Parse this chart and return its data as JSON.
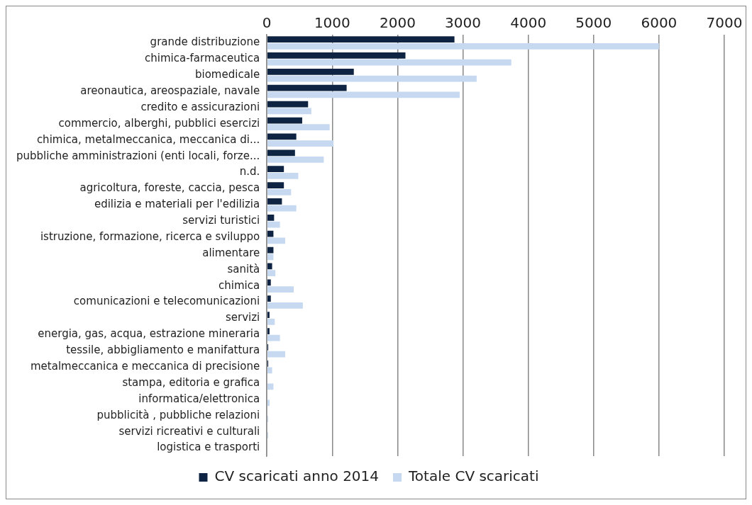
{
  "chart_data": {
    "type": "bar",
    "orientation": "horizontal",
    "categories": [
      "grande distribuzione",
      "chimica-farmaceutica",
      "biomedicale",
      "areonautica, areospaziale, navale",
      "credito e assicurazioni",
      "commercio, alberghi, pubblici esercizi",
      "chimica, metalmeccanica, meccanica di...",
      "pubbliche amministrazioni (enti locali, forze...",
      "n.d.",
      "agricoltura, foreste, caccia, pesca",
      "edilizia e materiali per l'edilizia",
      "servizi turistici",
      "istruzione, formazione, ricerca e sviluppo",
      "alimentare",
      "sanità",
      "chimica",
      "comunicazioni e telecomunicazioni",
      "servizi",
      "energia, gas, acqua, estrazione mineraria",
      "tessile, abbigliamento e manifattura",
      "metalmeccanica e meccanica di precisione",
      "stampa, editoria e grafica",
      "informatica/elettronica",
      "pubblicità , pubbliche relazioni",
      "servizi ricreativi e culturali",
      "logistica e trasporti"
    ],
    "series": [
      {
        "name": "CV scaricati anno 2014",
        "color": "#0f2442",
        "values": [
          2870,
          2120,
          1330,
          1220,
          630,
          540,
          450,
          430,
          260,
          260,
          230,
          110,
          100,
          100,
          80,
          60,
          60,
          40,
          40,
          20,
          20,
          0,
          0,
          0,
          0,
          0
        ]
      },
      {
        "name": "Totale CV scaricati",
        "color": "#c6d9f1",
        "values": [
          6000,
          3740,
          3210,
          2950,
          680,
          960,
          1020,
          870,
          480,
          370,
          450,
          200,
          280,
          100,
          130,
          410,
          550,
          120,
          200,
          280,
          80,
          100,
          40,
          20,
          20,
          0
        ]
      }
    ],
    "xlim": [
      0,
      7000
    ],
    "xticks": [
      0,
      1000,
      2000,
      3000,
      4000,
      5000,
      6000,
      7000
    ],
    "grid": "x",
    "legend": "bottom"
  }
}
